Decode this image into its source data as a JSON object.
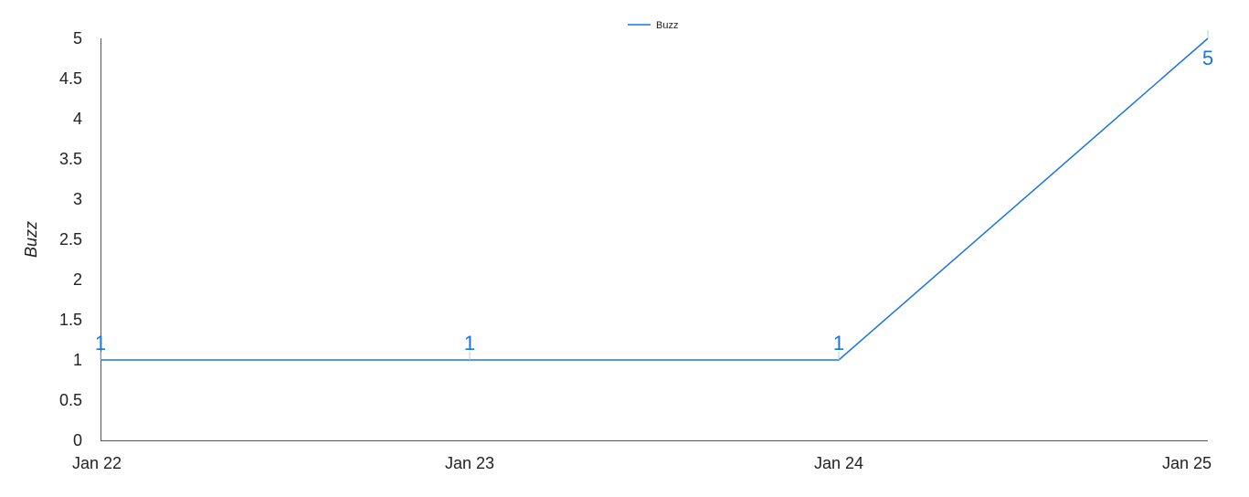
{
  "chart_data": {
    "type": "line",
    "title": "",
    "xlabel": "",
    "ylabel": "Buzz",
    "categories": [
      "Jan 22",
      "Jan 23",
      "Jan 24",
      "Jan 25"
    ],
    "series": [
      {
        "name": "Buzz",
        "color": "#1a73e8",
        "values": [
          1,
          1,
          1,
          5
        ],
        "data_labels": [
          "1",
          "1",
          "1",
          "5"
        ]
      }
    ],
    "ylim": [
      0,
      5
    ],
    "yticks": [
      "0",
      "0.5",
      "1",
      "1.5",
      "2",
      "2.5",
      "3",
      "3.5",
      "4",
      "4.5",
      "5"
    ],
    "grid": false,
    "legend": "top-center",
    "colors": {
      "axis": "#555555",
      "text": "#222222",
      "series": "#1a73e8"
    }
  }
}
